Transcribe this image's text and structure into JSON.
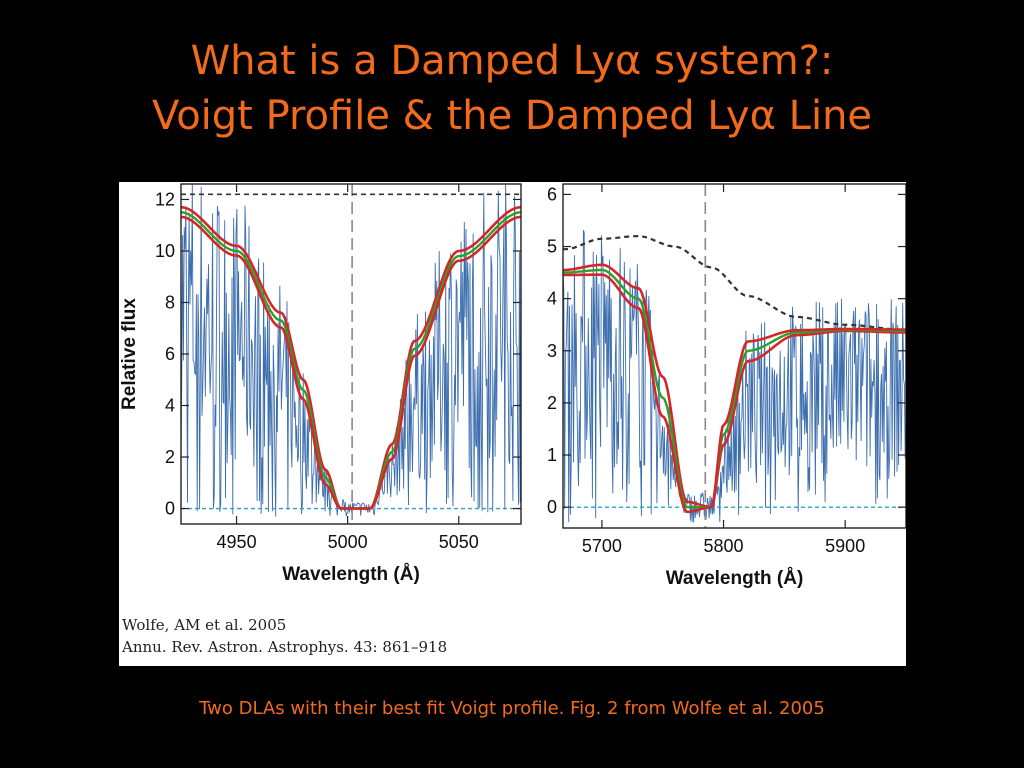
{
  "slide": {
    "title_line1": "What is a Damped Lyα system?:",
    "title_line2": "Voigt Profile & the Damped Lyα Line",
    "caption": "Two DLAs with their best fit Voigt profile. Fig. 2 from Wolfe et al. 2005"
  },
  "figure": {
    "credit_line1": "Wolfe, AM et al. 2005",
    "credit_line2": "Annu. Rev. Astron. Astrophys. 43: 861–918"
  },
  "colors": {
    "title": "#f26b1d",
    "spectrum": "#3d6fb0",
    "fit_red": "#d62728",
    "fit_green": "#2ca02c",
    "continuum": "#333333",
    "zero_line": "#2aa0c8",
    "center_line": "#888888"
  },
  "chart_data": [
    {
      "type": "line",
      "xlabel": "Wavelength (Å)",
      "ylabel": "Relative flux",
      "xlim": [
        4925,
        5078
      ],
      "ylim": [
        -0.6,
        12.6
      ],
      "xticks": [
        4950,
        5000,
        5050
      ],
      "yticks": [
        0,
        2,
        4,
        6,
        8,
        10,
        12
      ],
      "center_wavelength": 5002,
      "continuum_level": 12.2,
      "absorption_floor": [
        4997,
        5010
      ],
      "fit_curve_samples": {
        "x": [
          4925,
          4950,
          4970,
          4980,
          4990,
          4997,
          5010,
          5020,
          5030,
          5050,
          5078
        ],
        "red": [
          11.7,
          10.2,
          7.6,
          5.0,
          1.5,
          0.0,
          0.0,
          2.5,
          6.5,
          10.0,
          11.7
        ],
        "green": [
          11.5,
          10.0,
          7.3,
          4.6,
          1.2,
          0.0,
          0.0,
          2.2,
          6.2,
          9.8,
          11.5
        ]
      }
    },
    {
      "type": "line",
      "xlabel": "Wavelength (Å)",
      "ylabel": "",
      "xlim": [
        5668,
        5950
      ],
      "ylim": [
        -0.4,
        6.2
      ],
      "xticks": [
        5700,
        5800,
        5900
      ],
      "yticks": [
        0,
        1,
        2,
        3,
        4,
        5,
        6
      ],
      "center_wavelength": 5785,
      "continuum_curve": {
        "x": [
          5670,
          5700,
          5730,
          5760,
          5790,
          5820,
          5860,
          5900,
          5950
        ],
        "y": [
          4.95,
          5.15,
          5.2,
          5.0,
          4.6,
          4.05,
          3.65,
          3.5,
          3.4
        ]
      },
      "fit_curve_samples": {
        "x": [
          5668,
          5700,
          5730,
          5750,
          5770,
          5790,
          5800,
          5820,
          5860,
          5900,
          5950
        ],
        "red": [
          4.55,
          4.65,
          4.2,
          2.5,
          0.1,
          0.0,
          1.2,
          2.8,
          3.3,
          3.38,
          3.35
        ],
        "green": [
          4.5,
          4.55,
          4.0,
          2.1,
          0.0,
          0.0,
          1.4,
          3.0,
          3.35,
          3.4,
          3.38
        ]
      }
    }
  ]
}
